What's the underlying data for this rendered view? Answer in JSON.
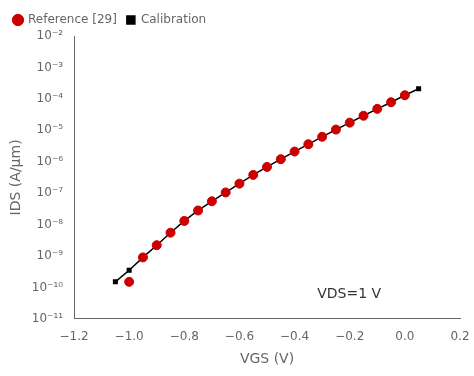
{
  "chart_data": {
    "type": "line",
    "xlabel": "VGS (V)",
    "ylabel": "IDS (A/μm)",
    "annotation": "VDS=1 V",
    "log": "y",
    "grid": false,
    "legend": "upper left",
    "xlim": [
      -1.2,
      0.2
    ],
    "ylim": [
      1e-11,
      0.01
    ],
    "xticks": [
      {
        "value": -1.2,
        "label": "−1.2"
      },
      {
        "value": -1.0,
        "label": "−1.0"
      },
      {
        "value": -0.8,
        "label": "−0.8"
      },
      {
        "value": -0.6,
        "label": "−0.6"
      },
      {
        "value": -0.4,
        "label": "−0.4"
      },
      {
        "value": -0.2,
        "label": "−0.2"
      },
      {
        "value": 0.0,
        "label": "0.0"
      },
      0.2
    ],
    "yticks": [
      {
        "value": 1e-11,
        "label": "10⁻¹¹"
      },
      {
        "value": 1e-10,
        "label": "10⁻¹⁰"
      },
      {
        "value": 1e-09,
        "label": "10⁻⁹"
      },
      {
        "value": 1e-08,
        "label": "10⁻⁸"
      },
      {
        "value": 1e-07,
        "label": "10⁻⁷"
      },
      {
        "value": 1e-06,
        "label": "10⁻⁶"
      },
      {
        "value": 1e-05,
        "label": "10⁻⁵"
      },
      {
        "value": 0.0001,
        "label": "10⁻⁴"
      },
      {
        "value": 0.001,
        "label": "10⁻³"
      },
      {
        "value": 0.01,
        "label": "10⁻²"
      }
    ],
    "series": [
      {
        "name": "Calibration",
        "type": "line",
        "color": "#000000",
        "marker": "square",
        "x": [
          -1.05,
          -1.0,
          -0.95,
          -0.9,
          -0.85,
          -0.8,
          -0.75,
          -0.7,
          -0.65,
          -0.6,
          -0.55,
          -0.5,
          -0.45,
          -0.4,
          -0.35,
          -0.3,
          -0.25,
          -0.2,
          -0.15,
          -0.1,
          -0.05,
          0.0,
          0.05
        ],
        "values": [
          1.5e-10,
          3.5e-10,
          9e-10,
          2.2e-09,
          5.5e-09,
          1.3e-08,
          2.8e-08,
          5.5e-08,
          1.05e-07,
          2e-07,
          3.8e-07,
          6.8e-07,
          1.2e-06,
          2.1e-06,
          3.6e-06,
          6.2e-06,
          1.05e-05,
          1.75e-05,
          2.9e-05,
          4.8e-05,
          7.8e-05,
          0.00013,
          0.00021
        ]
      },
      {
        "name": "Reference [29]",
        "type": "scatter",
        "color": "#cc0000",
        "marker": "circle",
        "x": [
          -1.0,
          -0.95,
          -0.9,
          -0.85,
          -0.8,
          -0.75,
          -0.7,
          -0.65,
          -0.6,
          -0.55,
          -0.5,
          -0.45,
          -0.4,
          -0.35,
          -0.3,
          -0.25,
          -0.2,
          -0.15,
          -0.1,
          -0.05,
          0.0
        ],
        "values": [
          1.5e-10,
          9e-10,
          2.2e-09,
          5.5e-09,
          1.3e-08,
          2.8e-08,
          5.5e-08,
          1.05e-07,
          2e-07,
          3.8e-07,
          6.8e-07,
          1.2e-06,
          2.1e-06,
          3.6e-06,
          6.2e-06,
          1.05e-05,
          1.75e-05,
          2.9e-05,
          4.8e-05,
          7.8e-05,
          0.00013
        ]
      }
    ]
  }
}
